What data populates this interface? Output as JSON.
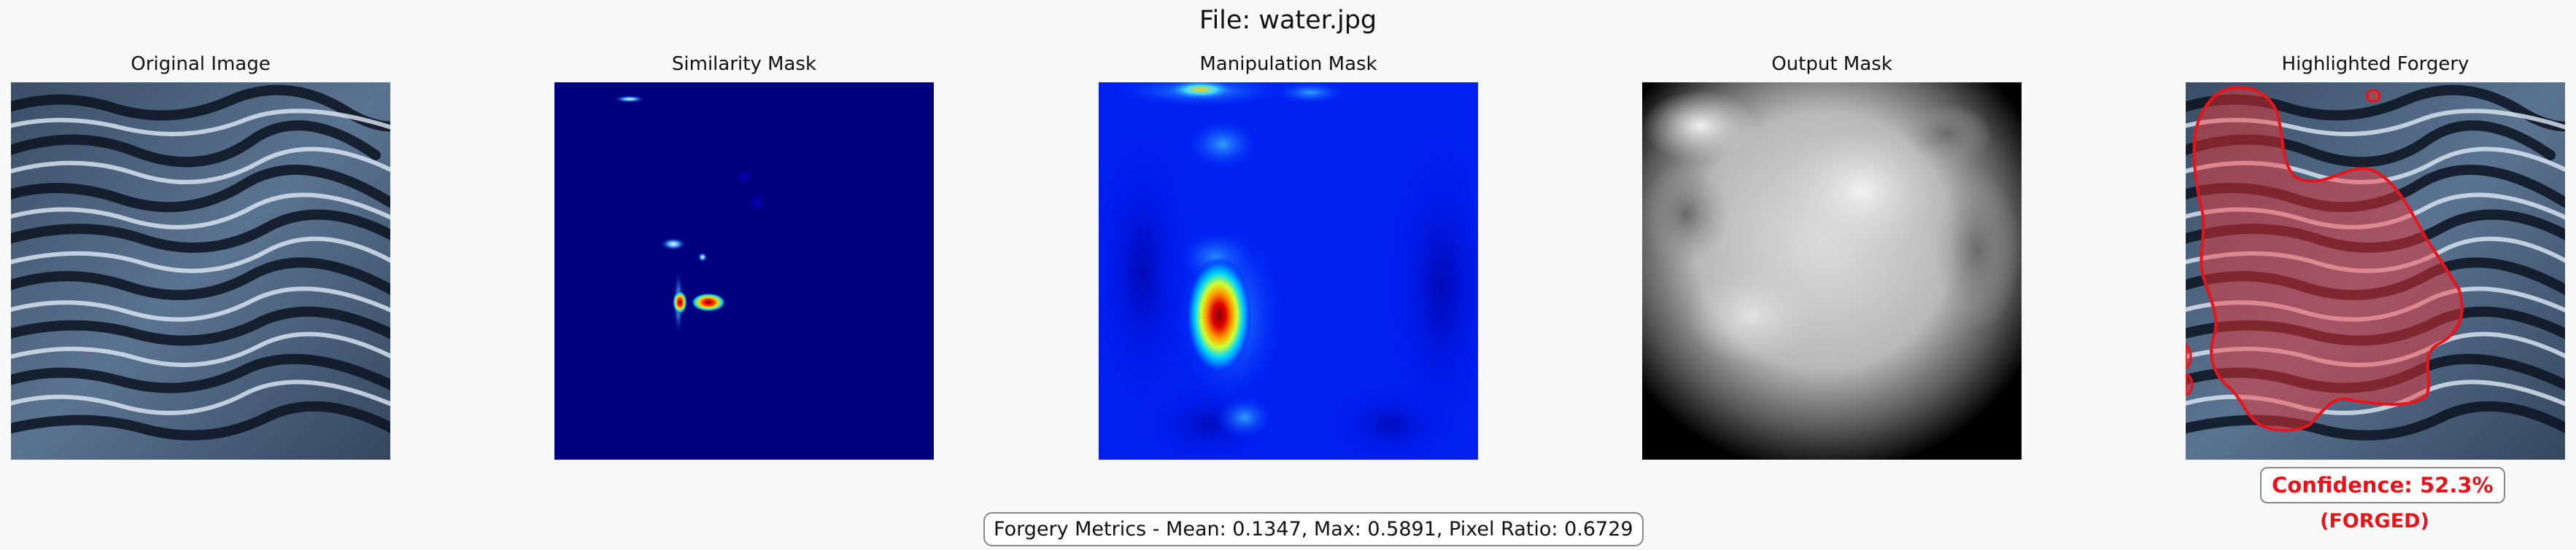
{
  "figure": {
    "title": "File: water.jpg"
  },
  "panels": [
    {
      "title": "Original Image"
    },
    {
      "title": "Similarity Mask"
    },
    {
      "title": "Manipulation Mask"
    },
    {
      "title": "Output Mask"
    },
    {
      "title": "Highlighted Forgery"
    }
  ],
  "confidence": {
    "label": "Confidence: 52.3%",
    "verdict": "(FORGED)"
  },
  "metrics": {
    "text": "Forgery Metrics - Mean: 0.1347, Max: 0.5891, Pixel Ratio: 0.6729"
  },
  "colors": {
    "background": "#f8f8f8",
    "forged_red": "#e8141c",
    "jet_low": "#00007f",
    "jet_high": "#ff0000"
  }
}
